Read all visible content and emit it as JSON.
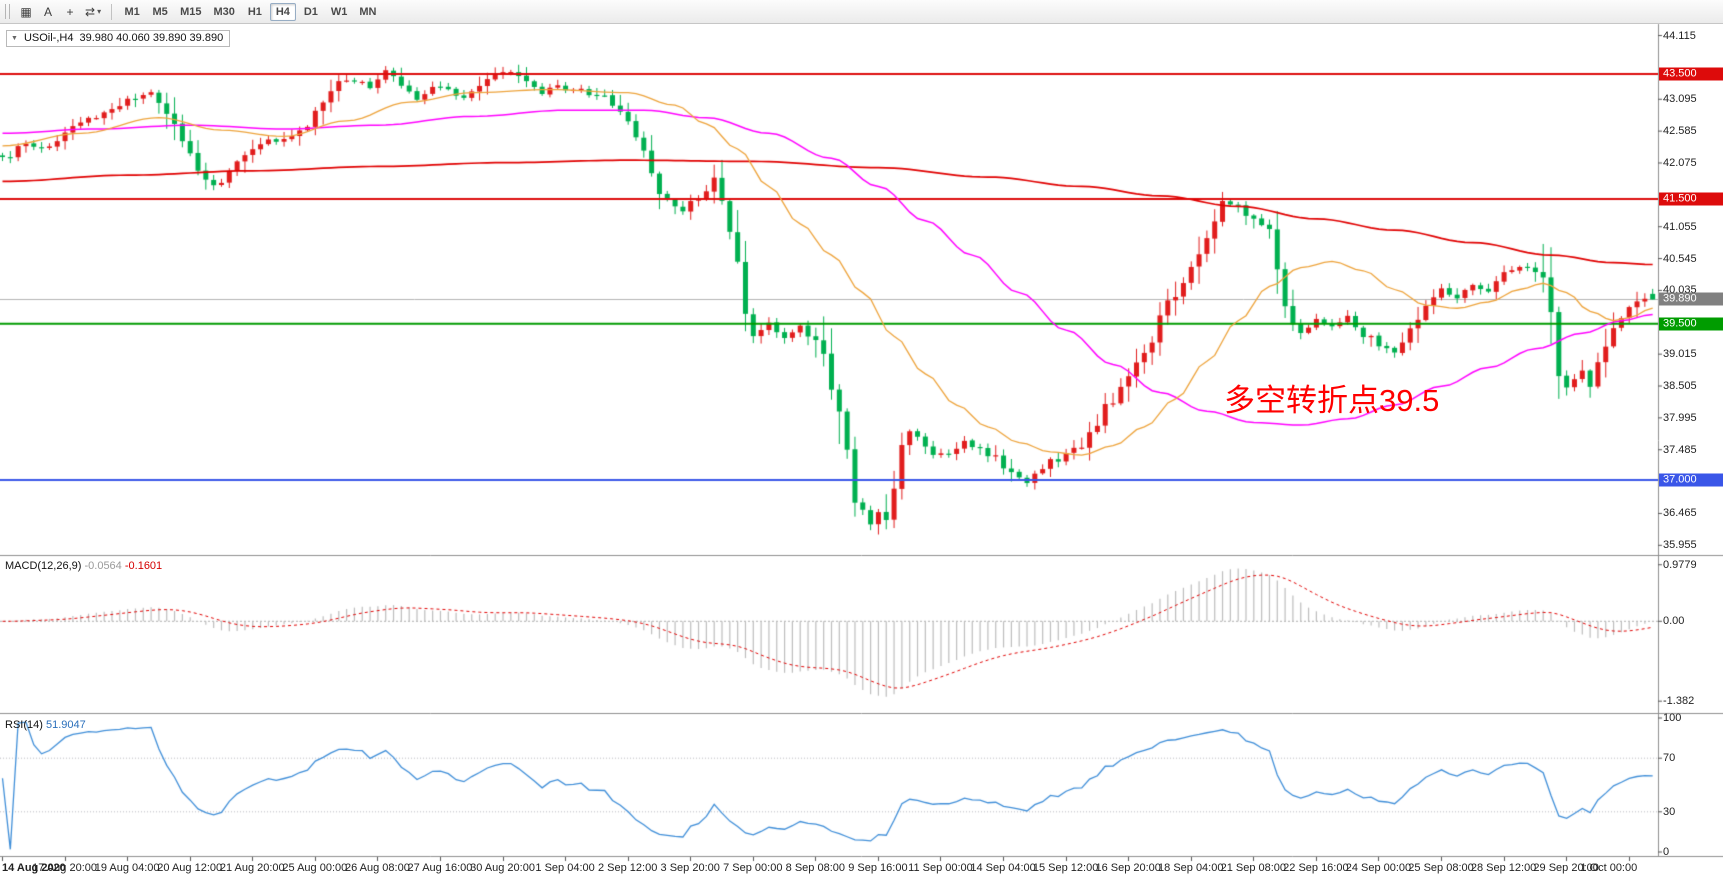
{
  "toolbar": {
    "icons": [
      {
        "name": "chart-window-icon",
        "glyph": "▦"
      },
      {
        "name": "text-tool-icon",
        "glyph": "A"
      },
      {
        "name": "crosshair-icon",
        "glyph": "+"
      },
      {
        "name": "chart-cycle-icon",
        "glyph": "⇄",
        "has_caret": true
      }
    ],
    "caret_glyph": "▾",
    "timeframes": [
      "M1",
      "M5",
      "M15",
      "M30",
      "H1",
      "H4",
      "D1",
      "W1",
      "MN"
    ],
    "active_timeframe": "H4"
  },
  "chart": {
    "symbol_box": {
      "caret": "▼",
      "symbol": "USOil-,H4",
      "ohlc": "39.980 40.060 39.890 39.890"
    },
    "annotation": {
      "text": "多空转折点39.5",
      "color": "#ff0000"
    },
    "price_axis_ticks": [
      "44.115",
      "43.095",
      "42.585",
      "42.075",
      "41.055",
      "40.545",
      "40.035",
      "39.015",
      "38.505",
      "37.995",
      "37.485",
      "36.465",
      "35.955"
    ],
    "hlines": [
      {
        "value": 43.5,
        "label": "43.500",
        "color": "#dd0b0b"
      },
      {
        "value": 41.5,
        "label": "41.500",
        "color": "#dd0b0b"
      },
      {
        "value": 39.5,
        "label": "39.500",
        "color": "#009c00"
      },
      {
        "value": 37.0,
        "label": "37.000",
        "color": "#3a56e8"
      }
    ],
    "current_price": {
      "value": 39.89,
      "label": "39.890",
      "color": "#808080"
    }
  },
  "macd": {
    "name": "MACD(12,26,9)",
    "main_value": "-0.0564",
    "signal_value": "-0.1601",
    "axis_ticks": [
      "0.9779",
      "0.00",
      "-1.382"
    ],
    "axis_values": [
      0.9779,
      0,
      -1.382
    ]
  },
  "rsi": {
    "name": "RSI(14)",
    "value": "51.9047",
    "axis_ticks": [
      "100",
      "70",
      "30",
      "0"
    ],
    "axis_values": [
      100,
      70,
      30,
      0
    ],
    "levels": [
      70,
      30
    ]
  },
  "chart_data": {
    "type": "candlestick",
    "symbol": "USOil",
    "timeframe": "H4",
    "candle_count": 212,
    "candles_per_time_label": 8,
    "price_range": [
      35.8,
      44.3
    ],
    "last_candle": {
      "open": 39.98,
      "high": 40.06,
      "low": 39.89,
      "close": 39.89
    },
    "up_color": "#e11d1d",
    "down_color": "#00b050",
    "hline_levels": [
      43.5,
      41.5,
      39.5,
      37.0
    ],
    "macd_params": [
      12,
      26,
      9
    ],
    "rsi_period": 14,
    "time_axis_labels": [
      "14 Aug 2020",
      "17 Aug 20:00",
      "19 Aug 04:00",
      "20 Aug 12:00",
      "21 Aug 20:00",
      "25 Aug 00:00",
      "26 Aug 08:00",
      "27 Aug 16:00",
      "30 Aug 20:00",
      "1 Sep 04:00",
      "2 Sep 12:00",
      "3 Sep 20:00",
      "7 Sep 00:00",
      "8 Sep 08:00",
      "9 Sep 16:00",
      "11 Sep 00:00",
      "14 Sep 04:00",
      "15 Sep 12:00",
      "16 Sep 20:00",
      "18 Sep 04:00",
      "21 Sep 08:00",
      "22 Sep 16:00",
      "24 Sep 00:00",
      "25 Sep 08:00",
      "28 Sep 12:00",
      "29 Sep 20:00",
      "1 Oct 00:00"
    ],
    "price_path_anchors": [
      [
        0,
        42.15
      ],
      [
        3,
        42.35
      ],
      [
        6,
        42.3
      ],
      [
        8,
        42.6
      ],
      [
        11,
        42.75
      ],
      [
        14,
        42.9
      ],
      [
        17,
        43.1
      ],
      [
        19,
        43.2
      ],
      [
        21,
        42.85
      ],
      [
        23,
        42.4
      ],
      [
        25,
        41.95
      ],
      [
        27,
        41.7
      ],
      [
        29,
        41.9
      ],
      [
        31,
        42.2
      ],
      [
        33,
        42.4
      ],
      [
        35,
        42.45
      ],
      [
        37,
        42.55
      ],
      [
        39,
        42.7
      ],
      [
        41,
        43.0
      ],
      [
        43,
        43.35
      ],
      [
        45,
        43.4
      ],
      [
        47,
        43.3
      ],
      [
        49,
        43.55
      ],
      [
        51,
        43.35
      ],
      [
        53,
        43.1
      ],
      [
        55,
        43.3
      ],
      [
        57,
        43.25
      ],
      [
        59,
        43.1
      ],
      [
        61,
        43.3
      ],
      [
        63,
        43.45
      ],
      [
        65,
        43.55
      ],
      [
        67,
        43.35
      ],
      [
        69,
        43.2
      ],
      [
        71,
        43.3
      ],
      [
        73,
        43.25
      ],
      [
        75,
        43.2
      ],
      [
        77,
        43.15
      ],
      [
        79,
        42.95
      ],
      [
        81,
        42.45
      ],
      [
        83,
        41.9
      ],
      [
        85,
        41.45
      ],
      [
        87,
        41.3
      ],
      [
        89,
        41.55
      ],
      [
        91,
        41.75
      ],
      [
        93,
        40.9
      ],
      [
        94,
        40.3
      ],
      [
        95,
        39.7
      ],
      [
        96,
        39.35
      ],
      [
        98,
        39.5
      ],
      [
        100,
        39.3
      ],
      [
        102,
        39.45
      ],
      [
        104,
        39.25
      ],
      [
        105,
        38.95
      ],
      [
        106,
        38.5
      ],
      [
        107,
        38.0
      ],
      [
        108,
        37.3
      ],
      [
        109,
        36.8
      ],
      [
        110,
        36.55
      ],
      [
        111,
        36.35
      ],
      [
        112,
        36.55
      ],
      [
        113,
        36.4
      ],
      [
        114,
        37.0
      ],
      [
        115,
        37.5
      ],
      [
        116,
        37.85
      ],
      [
        117,
        37.65
      ],
      [
        118,
        37.5
      ],
      [
        119,
        37.35
      ],
      [
        121,
        37.45
      ],
      [
        123,
        37.6
      ],
      [
        125,
        37.5
      ],
      [
        127,
        37.35
      ],
      [
        129,
        37.1
      ],
      [
        131,
        36.95
      ],
      [
        133,
        37.2
      ],
      [
        135,
        37.35
      ],
      [
        137,
        37.45
      ],
      [
        139,
        37.75
      ],
      [
        141,
        38.15
      ],
      [
        143,
        38.5
      ],
      [
        145,
        38.85
      ],
      [
        147,
        39.3
      ],
      [
        149,
        39.8
      ],
      [
        151,
        40.1
      ],
      [
        153,
        40.6
      ],
      [
        155,
        41.2
      ],
      [
        156,
        41.45
      ],
      [
        158,
        41.35
      ],
      [
        160,
        41.2
      ],
      [
        162,
        41.0
      ],
      [
        163,
        40.5
      ],
      [
        164,
        39.8
      ],
      [
        165,
        39.4
      ],
      [
        166,
        39.3
      ],
      [
        168,
        39.55
      ],
      [
        170,
        39.45
      ],
      [
        172,
        39.65
      ],
      [
        174,
        39.35
      ],
      [
        176,
        39.15
      ],
      [
        178,
        39.05
      ],
      [
        180,
        39.4
      ],
      [
        182,
        39.8
      ],
      [
        184,
        40.05
      ],
      [
        186,
        39.95
      ],
      [
        188,
        40.15
      ],
      [
        190,
        40.05
      ],
      [
        192,
        40.3
      ],
      [
        194,
        40.4
      ],
      [
        196,
        40.35
      ],
      [
        197,
        40.2
      ],
      [
        198,
        39.5
      ],
      [
        199,
        38.7
      ],
      [
        200,
        38.4
      ],
      [
        201,
        38.6
      ],
      [
        202,
        38.75
      ],
      [
        203,
        38.55
      ],
      [
        204,
        38.85
      ],
      [
        205,
        39.1
      ],
      [
        206,
        39.35
      ],
      [
        207,
        39.55
      ],
      [
        208,
        39.75
      ],
      [
        209,
        39.85
      ],
      [
        211,
        39.9
      ]
    ],
    "ma_fast": {
      "color": "#eda33b",
      "anchors": [
        [
          0,
          42.35
        ],
        [
          10,
          42.55
        ],
        [
          20,
          42.8
        ],
        [
          28,
          42.6
        ],
        [
          36,
          42.5
        ],
        [
          44,
          42.75
        ],
        [
          52,
          43.05
        ],
        [
          60,
          43.2
        ],
        [
          70,
          43.25
        ],
        [
          80,
          43.2
        ],
        [
          86,
          43.0
        ],
        [
          90,
          42.7
        ],
        [
          94,
          42.3
        ],
        [
          98,
          41.7
        ],
        [
          102,
          41.1
        ],
        [
          106,
          40.6
        ],
        [
          110,
          40.0
        ],
        [
          114,
          39.3
        ],
        [
          118,
          38.7
        ],
        [
          122,
          38.2
        ],
        [
          126,
          37.85
        ],
        [
          130,
          37.6
        ],
        [
          134,
          37.45
        ],
        [
          138,
          37.4
        ],
        [
          142,
          37.55
        ],
        [
          146,
          37.85
        ],
        [
          150,
          38.3
        ],
        [
          154,
          38.9
        ],
        [
          158,
          39.55
        ],
        [
          162,
          40.1
        ],
        [
          166,
          40.4
        ],
        [
          170,
          40.5
        ],
        [
          174,
          40.35
        ],
        [
          178,
          40.05
        ],
        [
          182,
          39.8
        ],
        [
          186,
          39.75
        ],
        [
          190,
          39.85
        ],
        [
          194,
          40.05
        ],
        [
          197,
          40.15
        ],
        [
          200,
          40.0
        ],
        [
          203,
          39.7
        ],
        [
          206,
          39.55
        ],
        [
          208,
          39.6
        ],
        [
          211,
          39.75
        ]
      ]
    },
    "ma_mid": {
      "color": "#ff00ff",
      "anchors": [
        [
          0,
          42.55
        ],
        [
          12,
          42.62
        ],
        [
          24,
          42.68
        ],
        [
          36,
          42.62
        ],
        [
          48,
          42.68
        ],
        [
          60,
          42.82
        ],
        [
          72,
          42.92
        ],
        [
          82,
          42.92
        ],
        [
          90,
          42.8
        ],
        [
          98,
          42.55
        ],
        [
          106,
          42.15
        ],
        [
          112,
          41.7
        ],
        [
          118,
          41.15
        ],
        [
          124,
          40.6
        ],
        [
          130,
          40.0
        ],
        [
          136,
          39.4
        ],
        [
          142,
          38.85
        ],
        [
          148,
          38.4
        ],
        [
          154,
          38.1
        ],
        [
          160,
          37.92
        ],
        [
          166,
          37.88
        ],
        [
          172,
          37.98
        ],
        [
          178,
          38.2
        ],
        [
          184,
          38.5
        ],
        [
          190,
          38.8
        ],
        [
          196,
          39.1
        ],
        [
          202,
          39.35
        ],
        [
          207,
          39.55
        ],
        [
          211,
          39.65
        ]
      ]
    },
    "ma_slow": {
      "color": "#e00000",
      "anchors": [
        [
          0,
          41.78
        ],
        [
          16,
          41.88
        ],
        [
          32,
          41.95
        ],
        [
          48,
          42.02
        ],
        [
          64,
          42.08
        ],
        [
          80,
          42.12
        ],
        [
          96,
          42.1
        ],
        [
          112,
          42.0
        ],
        [
          126,
          41.85
        ],
        [
          138,
          41.7
        ],
        [
          148,
          41.55
        ],
        [
          158,
          41.38
        ],
        [
          168,
          41.18
        ],
        [
          178,
          41.0
        ],
        [
          188,
          40.8
        ],
        [
          198,
          40.6
        ],
        [
          206,
          40.48
        ],
        [
          211,
          40.45
        ]
      ]
    }
  }
}
